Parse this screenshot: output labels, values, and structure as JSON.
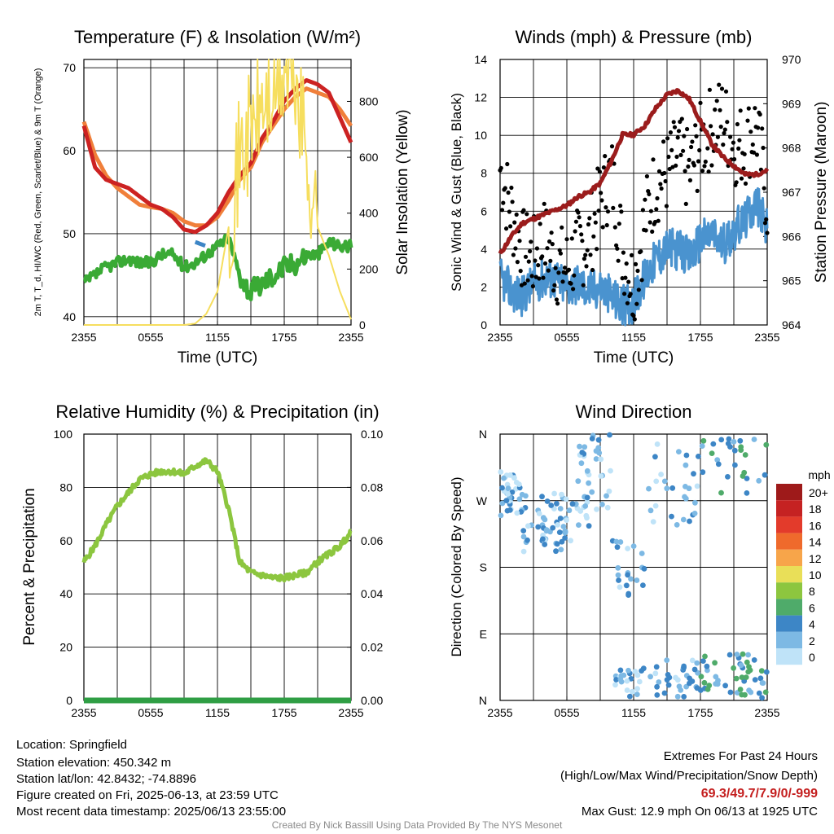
{
  "chart_data": [
    {
      "type": "line",
      "title": "Temperature (F) & Insolation (W/m²)",
      "xlabel": "Time (UTC)",
      "ylabel": "2m T, T_d, HI/WC (Red, Green, Scarlet/Blue) & 9m T (Orange)",
      "ylabel_right": "Solar Insolation (Yellow)",
      "x_ticks": [
        "2355",
        "0555",
        "1155",
        "1755",
        "2355"
      ],
      "ylim": [
        39,
        71
      ],
      "y_ticks": [
        40,
        50,
        60,
        70
      ],
      "ylim_right": [
        0,
        950
      ],
      "y_ticks_right": [
        0,
        200,
        400,
        600,
        800
      ],
      "x_hours": [
        0,
        1,
        2,
        3,
        4,
        5,
        6,
        7,
        8,
        9,
        10,
        11,
        12,
        13,
        14,
        15,
        16,
        17,
        18,
        19,
        20,
        21,
        22,
        23,
        24
      ],
      "series": [
        {
          "color": "#f07f3a",
          "values": [
            63.5,
            59.5,
            57,
            55.5,
            54.5,
            53.5,
            53.2,
            53,
            52.5,
            51.5,
            51,
            51,
            52,
            54,
            56.5,
            58,
            61,
            63,
            65,
            66.5,
            67.5,
            67,
            66.5,
            65,
            63
          ]
        },
        {
          "color": "#cc2222",
          "values": [
            63,
            58,
            56.5,
            56,
            55.5,
            54.5,
            53.5,
            53,
            52,
            50.5,
            50.2,
            51,
            52.5,
            55,
            57,
            58.5,
            61.5,
            63.5,
            66,
            67.5,
            68.5,
            68,
            67,
            64,
            61
          ]
        },
        {
          "color": "#3aaa35",
          "values": [
            44,
            45,
            46,
            46.5,
            47,
            46.5,
            46.5,
            47.5,
            47.5,
            46,
            46.5,
            47.5,
            48.5,
            49.5,
            45,
            43,
            44,
            45,
            46,
            46.5,
            47.5,
            47.5,
            49,
            48.5,
            48.5
          ]
        },
        {
          "color": "#3d86c6",
          "values": [
            null,
            null,
            null,
            null,
            null,
            null,
            null,
            null,
            null,
            null,
            49,
            48.5,
            null,
            null,
            null,
            null,
            null,
            null,
            null,
            null,
            null,
            null,
            null,
            null,
            null
          ]
        },
        {
          "color": "#f6de5e",
          "axis": "right",
          "values": [
            0,
            0,
            0,
            0,
            0,
            0,
            0,
            0,
            0,
            0,
            5,
            40,
            120,
            350,
            600,
            700,
            780,
            820,
            900,
            880,
            600,
            350,
            250,
            120,
            20
          ]
        }
      ]
    },
    {
      "type": "scatter",
      "title": "Winds (mph) & Pressure (mb)",
      "xlabel": "Time (UTC)",
      "ylabel": "Sonic Wind & Gust (Blue, Black)",
      "ylabel_right": "Station Pressure (Maroon)",
      "x_ticks": [
        "2355",
        "0555",
        "1155",
        "1755",
        "2355"
      ],
      "ylim": [
        0,
        14
      ],
      "y_ticks": [
        0,
        2,
        4,
        6,
        8,
        10,
        12,
        14
      ],
      "ylim_right": [
        964,
        970
      ],
      "y_ticks_right": [
        964,
        965,
        966,
        967,
        968,
        969,
        970
      ],
      "x_hours": [
        0,
        1,
        2,
        3,
        4,
        5,
        6,
        7,
        8,
        9,
        10,
        11,
        12,
        13,
        14,
        15,
        16,
        17,
        18,
        19,
        20,
        21,
        22,
        23,
        24
      ],
      "series": [
        {
          "color": "#4a93cf",
          "values": [
            2.5,
            1.8,
            1.5,
            2.2,
            2.5,
            2.4,
            2,
            2.2,
            1.8,
            2,
            1.5,
            1,
            1.2,
            2.5,
            3.5,
            4,
            4,
            3.5,
            4.5,
            4.8,
            4.2,
            5,
            5.5,
            6.5,
            5
          ]
        },
        {
          "color": "#000000",
          "values": [
            8.2,
            6,
            4,
            3.5,
            4.5,
            3.2,
            3,
            4,
            4.5,
            6.5,
            8,
            4,
            2,
            5.5,
            7.5,
            8,
            9,
            8,
            9.5,
            10.5,
            11,
            9.5,
            9.5,
            10.5,
            6.5
          ]
        },
        {
          "color": "#9b1c1c",
          "axis": "right",
          "values": [
            965.6,
            966,
            966.3,
            966.4,
            966.5,
            966.6,
            966.7,
            966.9,
            967,
            967.2,
            967.7,
            968.3,
            968.3,
            968.5,
            968.9,
            969.2,
            969.3,
            969.1,
            968.6,
            968.1,
            967.8,
            967.6,
            967.4,
            967.4,
            967.5
          ]
        }
      ]
    },
    {
      "type": "line",
      "title": "Relative Humidity (%) & Precipitation (in)",
      "xlabel": "",
      "ylabel": "Percent & Precipitation",
      "x_ticks": [
        "2355",
        "0555",
        "1155",
        "1755",
        "2355"
      ],
      "ylim": [
        0,
        100
      ],
      "y_ticks": [
        0,
        20,
        40,
        60,
        80,
        100
      ],
      "ylim_right": [
        0,
        0.1
      ],
      "y_ticks_right": [
        "0.00",
        "0.02",
        "0.04",
        "0.06",
        "0.08",
        "0.10"
      ],
      "x_hours": [
        0,
        1,
        2,
        3,
        4,
        5,
        6,
        7,
        8,
        9,
        10,
        11,
        12,
        13,
        14,
        15,
        16,
        17,
        18,
        19,
        20,
        21,
        22,
        23,
        24
      ],
      "series": [
        {
          "color": "#8cc63f",
          "values": [
            52,
            58,
            66,
            73,
            78,
            83,
            85,
            86,
            86,
            85,
            88,
            90,
            86,
            72,
            52,
            48,
            47,
            46,
            46,
            47,
            48,
            52,
            55,
            58,
            63
          ]
        },
        {
          "color": "#2f9e44",
          "axis": "right",
          "values": [
            0,
            0,
            0,
            0,
            0,
            0,
            0,
            0,
            0,
            0,
            0,
            0,
            0,
            0,
            0,
            0,
            0,
            0,
            0,
            0,
            0,
            0,
            0,
            0,
            0
          ]
        }
      ]
    },
    {
      "type": "scatter",
      "title": "Wind Direction",
      "ylabel": "Direction (Colored By Speed)",
      "x_ticks": [
        "2355",
        "0555",
        "1155",
        "1755",
        "2355"
      ],
      "y_ticks": [
        "N",
        "E",
        "S",
        "W",
        "N"
      ],
      "ylim": [
        0,
        360
      ],
      "legend_title": "mph",
      "legend_labels": [
        "20+",
        "18",
        "16",
        "14",
        "12",
        "10",
        "8",
        "6",
        "4",
        "2",
        "0"
      ],
      "legend_colors": [
        "#9e1a1a",
        "#c52222",
        "#e33b2b",
        "#ef6a2c",
        "#f7a54a",
        "#e9df58",
        "#8dc63f",
        "#4fab6a",
        "#3d86c6",
        "#7db9e4",
        "#bfe3f8"
      ]
    }
  ],
  "info": {
    "location": "Location: Springfield",
    "elevation": "Station elevation: 450.342 m",
    "latlon": "Station lat/lon: 42.8432; -74.8896",
    "created": "Figure created on Fri, 2025-06-13, at 23:59 UTC",
    "recent": "Most recent data timestamp: 2025/06/13 23:55:00"
  },
  "extremes": {
    "title": "Extremes For Past 24 Hours",
    "subtitle": "(High/Low/Max Wind/Precipitation/Snow Depth)",
    "values": "69.3/49.7/7.9/0/-999",
    "gust": "Max Gust: 12.9 mph On 06/13 at 1925 UTC"
  },
  "credit": "Created By Nick Bassill Using Data Provided By The NYS Mesonet"
}
